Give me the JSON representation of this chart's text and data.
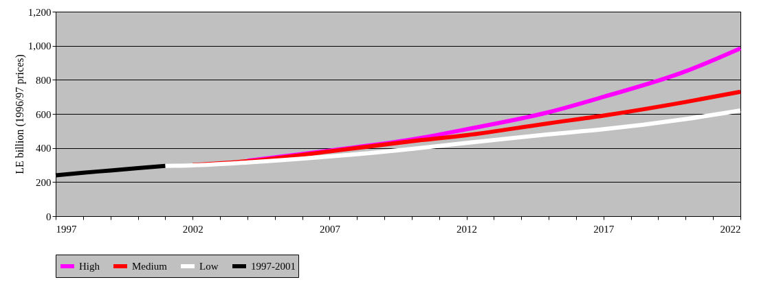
{
  "chart_data": {
    "type": "line",
    "ylabel": "LE billion (1996/97 prices)",
    "xlim": [
      1997,
      2022
    ],
    "ylim": [
      0,
      1200
    ],
    "xticks": [
      1997,
      {
        "value": 1998,
        "label": null
      },
      {
        "value": 1999,
        "label": null
      },
      {
        "value": 2000,
        "label": null
      },
      {
        "value": 2001,
        "label": null
      },
      2002,
      {
        "value": 2003,
        "label": null
      },
      {
        "value": 2004,
        "label": null
      },
      {
        "value": 2005,
        "label": null
      },
      {
        "value": 2006,
        "label": null
      },
      2007,
      {
        "value": 2008,
        "label": null
      },
      {
        "value": 2009,
        "label": null
      },
      {
        "value": 2010,
        "label": null
      },
      {
        "value": 2011,
        "label": null
      },
      2012,
      {
        "value": 2013,
        "label": null
      },
      {
        "value": 2014,
        "label": null
      },
      {
        "value": 2015,
        "label": null
      },
      {
        "value": 2016,
        "label": null
      },
      2017,
      {
        "value": 2018,
        "label": null
      },
      {
        "value": 2019,
        "label": null
      },
      {
        "value": 2020,
        "label": null
      },
      {
        "value": 2021,
        "label": null
      },
      2022
    ],
    "yticks": [
      0,
      200,
      400,
      600,
      800,
      {
        "value": 1000,
        "label": "1,000"
      },
      {
        "value": 1200,
        "label": "1,200"
      }
    ],
    "grid": "y",
    "legend": "bottom",
    "marker": "none",
    "line_style": "solid",
    "series": [
      {
        "name": "High",
        "color": "#ff00ff",
        "x": [
          2004,
          2007,
          2010,
          2012,
          2015,
          2017,
          2020,
          2022
        ],
        "values": [
          325,
          385,
          450,
          510,
          610,
          700,
          850,
          985
        ]
      },
      {
        "name": "Medium",
        "color": "#ff0000",
        "x": [
          2002,
          2004,
          2007,
          2010,
          2012,
          2015,
          2017,
          2020,
          2022
        ],
        "values": [
          300,
          322,
          380,
          440,
          475,
          545,
          590,
          670,
          730
        ]
      },
      {
        "name": "Low",
        "color": "#ffffff",
        "x": [
          2001,
          2002,
          2004,
          2007,
          2010,
          2012,
          2015,
          2017,
          2020,
          2022
        ],
        "values": [
          295,
          298,
          315,
          350,
          395,
          430,
          480,
          510,
          570,
          620
        ]
      },
      {
        "name": "1997-2001",
        "color": "#000000",
        "x": [
          1997,
          1998,
          1999,
          2000,
          2001
        ],
        "values": [
          240,
          255,
          268,
          282,
          295
        ]
      }
    ]
  }
}
